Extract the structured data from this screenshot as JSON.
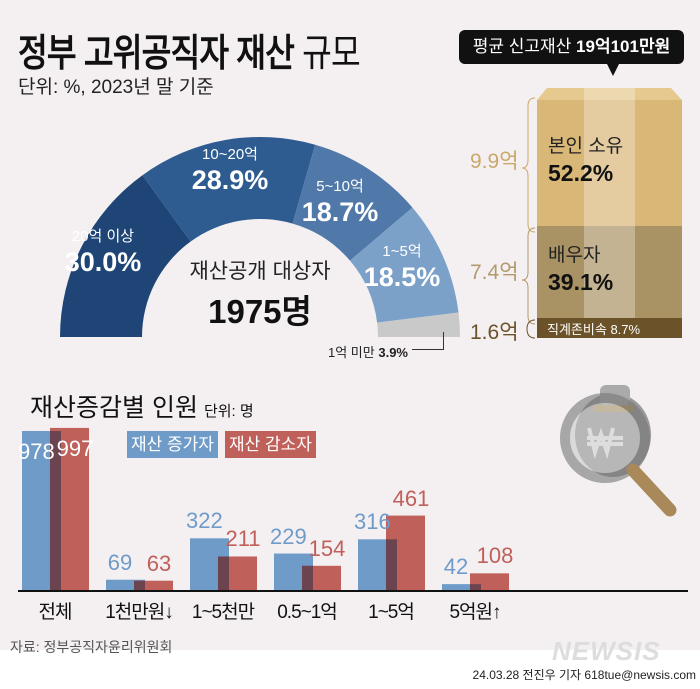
{
  "title_bold": "정부 고위공직자 재산",
  "title_light": "규모",
  "unit": "단위: %, 2023년 말 기준",
  "bubble": {
    "prefix": "평균 신고재산 ",
    "value": "19억101만원"
  },
  "colors": {
    "bg": "#f4f0f2",
    "increase": "#6f9bc8",
    "decrease": "#c0605a",
    "overlap": "#6b4450"
  },
  "chart_data": [
    {
      "type": "pie",
      "variant": "half-donut",
      "center_label": "재산공개 대상자",
      "center_value": "1975명",
      "categories": [
        "20억 이상",
        "10~20억",
        "5~10억",
        "1~5억",
        "1억 미만"
      ],
      "values": [
        30.0,
        28.9,
        18.7,
        18.5,
        3.9
      ],
      "value_labels": [
        "30.0%",
        "28.9%",
        "18.7%",
        "18.5%",
        "3.9%"
      ],
      "colors": [
        "#1e4576",
        "#2f5c90",
        "#5079a9",
        "#7ba1c9",
        "#c9c9c9"
      ]
    },
    {
      "type": "bar",
      "variant": "stacked-box",
      "categories": [
        "본인 소유",
        "배우자",
        "직계존비속"
      ],
      "values": [
        52.2,
        39.1,
        8.7
      ],
      "value_labels": [
        "52.2%",
        "39.1%",
        "8.7%"
      ],
      "amounts": [
        "9.9억",
        "7.4억",
        "1.6억"
      ],
      "colors": [
        "#d9b777",
        "#a99263",
        "#6b5228"
      ]
    },
    {
      "type": "bar",
      "title": "재산증감별 인원",
      "unit": "단위: 명",
      "categories": [
        "전체",
        "1천만원↓",
        "1~5천만",
        "0.5~1억",
        "1~5억",
        "5억원↑"
      ],
      "series": [
        {
          "name": "재산 증가자",
          "values": [
            978,
            69,
            322,
            229,
            316,
            42
          ]
        },
        {
          "name": "재산 감소자",
          "values": [
            997,
            63,
            211,
            154,
            461,
            108
          ]
        }
      ],
      "legend": "top"
    }
  ],
  "source": "자료: 정부공직자윤리위원회",
  "credit": "24.03.28 전진우 기자 618tue@newsis.com",
  "logo": "NEWSIS"
}
